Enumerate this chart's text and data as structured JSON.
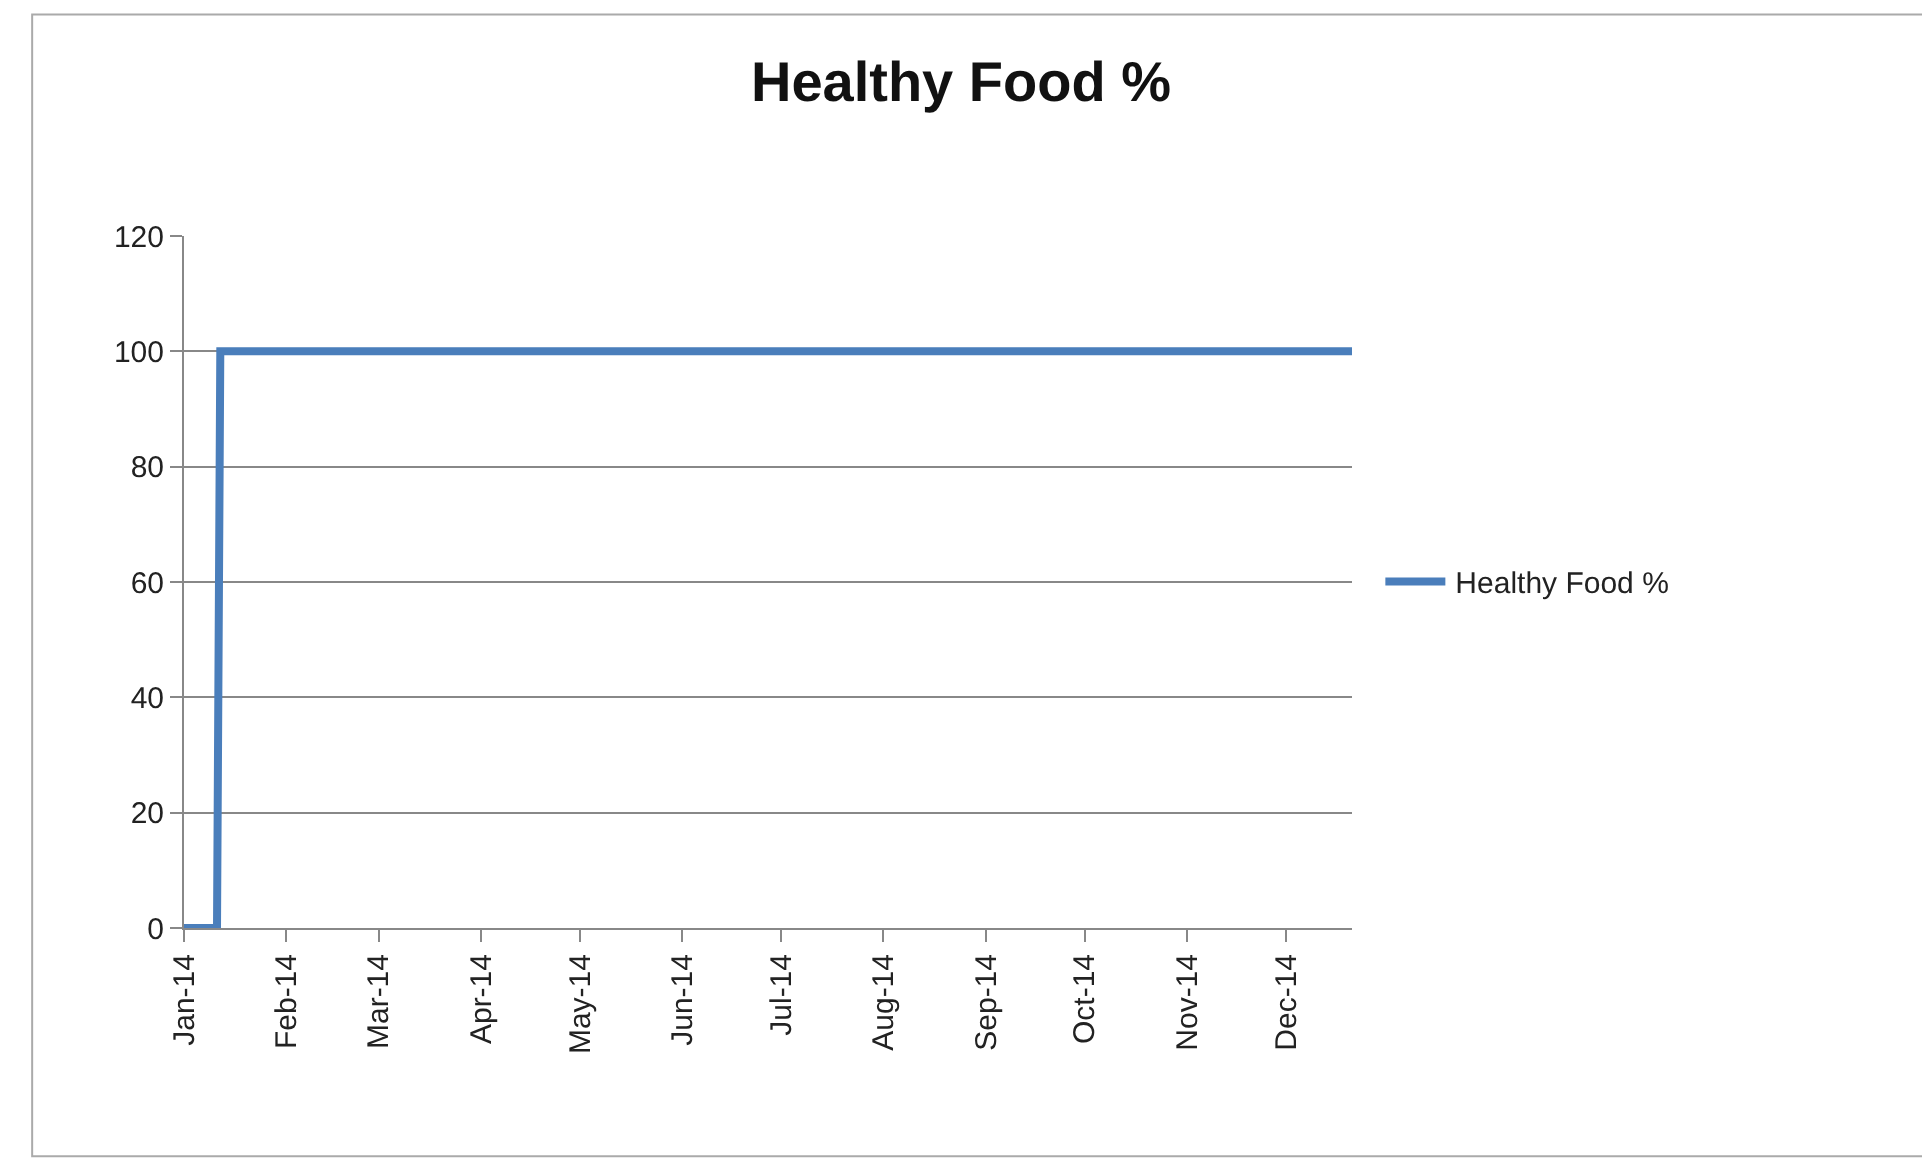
{
  "chart_data": {
    "type": "line",
    "title": "Healthy Food %",
    "x": [
      "2014-01-01",
      "2014-01-11",
      "2014-01-12",
      "2014-12-21"
    ],
    "series": [
      {
        "name": "Healthy Food %",
        "color": "#4a7ebb",
        "values": [
          0,
          0,
          100,
          100
        ]
      }
    ],
    "xlim": [
      "2014-01-01",
      "2014-12-21"
    ],
    "xticks": [
      {
        "value": "2014-01-01",
        "label": "Jan-14"
      },
      {
        "value": "2014-02-01",
        "label": "Feb-14"
      },
      {
        "value": "2014-03-01",
        "label": "Mar-14"
      },
      {
        "value": "2014-04-01",
        "label": "Apr-14"
      },
      {
        "value": "2014-05-01",
        "label": "May-14"
      },
      {
        "value": "2014-06-01",
        "label": "Jun-14"
      },
      {
        "value": "2014-07-01",
        "label": "Jul-14"
      },
      {
        "value": "2014-08-01",
        "label": "Aug-14"
      },
      {
        "value": "2014-09-01",
        "label": "Sep-14"
      },
      {
        "value": "2014-10-01",
        "label": "Oct-14"
      },
      {
        "value": "2014-11-01",
        "label": "Nov-14"
      },
      {
        "value": "2014-12-01",
        "label": "Dec-14"
      }
    ],
    "ylim": [
      0,
      120
    ],
    "yticks": [
      0,
      20,
      40,
      60,
      80,
      100,
      120
    ],
    "grid": "y",
    "legend": "right",
    "marker": "none",
    "line_style": "solid"
  }
}
